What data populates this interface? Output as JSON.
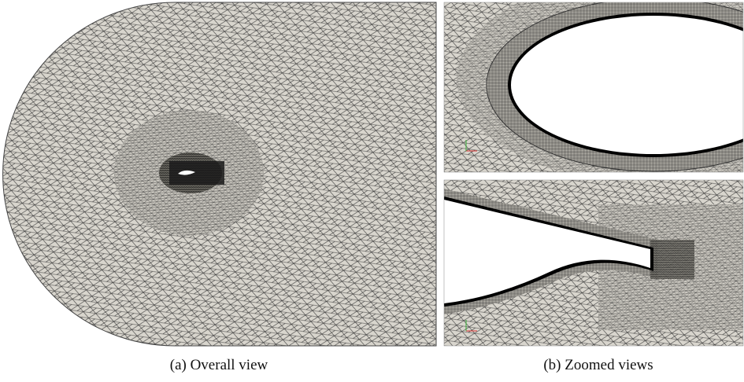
{
  "figure": {
    "panels": [
      {
        "caption": "(a) Overall view"
      },
      {
        "caption": "(b) Zoomed views"
      }
    ]
  }
}
